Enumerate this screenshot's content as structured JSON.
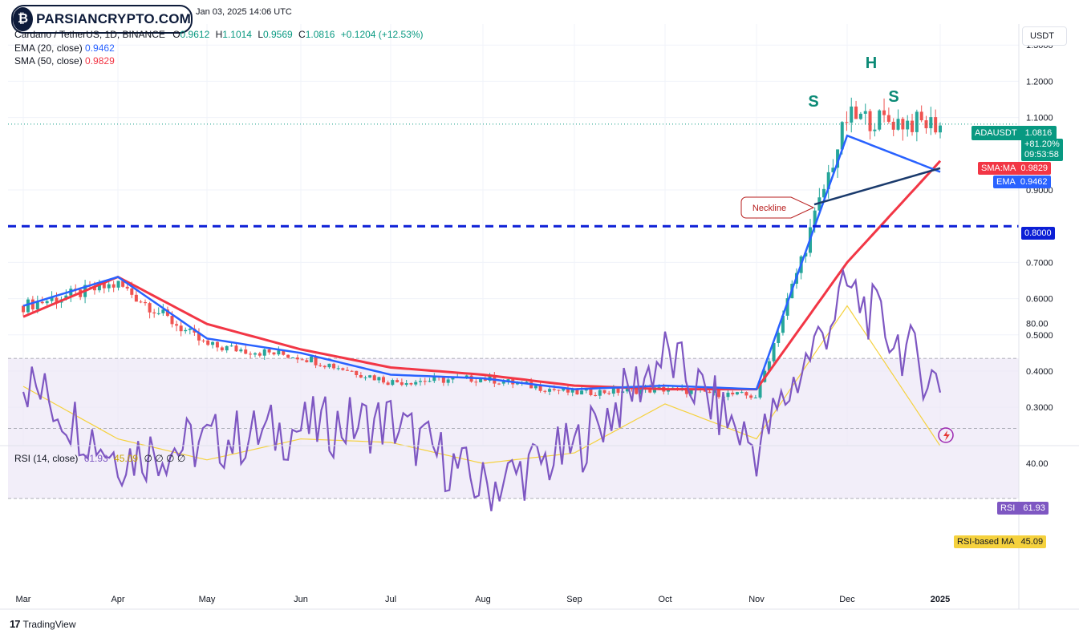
{
  "watermark": {
    "brand": "PARSIANCRYPTO.COM",
    "published": "Jan 03, 2025 14:06 UTC"
  },
  "header": {
    "symbol": "Cardano / TetherUS, 1D, BINANCE",
    "open_label": "O",
    "open": "0.9612",
    "high_label": "H",
    "high": "1.1014",
    "low_label": "L",
    "low": "0.9569",
    "close_label": "C",
    "close": "1.0816",
    "change": "+0.1204 (+12.53%)",
    "ema_label": "EMA (20, close)",
    "ema_value": "0.9462",
    "sma_label": "SMA (50, close)",
    "sma_value": "0.9829"
  },
  "price_axis": {
    "unit": "USDT"
  },
  "tags": {
    "last": {
      "name": "ADAUSDT",
      "price": "1.0816",
      "change": "+81.20%",
      "countdown": "09:53:58"
    },
    "sma": {
      "name": "SMA:MA",
      "value": "0.9829"
    },
    "ema": {
      "name": "EMA",
      "value": "0.9462"
    },
    "support": {
      "value": "0.8000"
    },
    "rsi": {
      "name": "RSI",
      "value": "61.93"
    },
    "rsi_ma": {
      "name": "RSI-based MA",
      "value": "45.09"
    }
  },
  "annotations": {
    "neckline": "Neckline",
    "left_shoulder": "S",
    "head": "H",
    "right_shoulder": "S"
  },
  "rsi_header": {
    "label": "RSI (14, close)",
    "rsi": "61.93",
    "ma": "45.09",
    "extras": "∅ ∅ ∅ ∅"
  },
  "footer": {
    "brand": "TradingView"
  },
  "colors": {
    "up": "#26a69a",
    "down": "#ef5350",
    "ema": "#2962ff",
    "sma": "#f23645",
    "rsi": "#7e57c2",
    "rsi_ma": "#f5d13d",
    "support": "#0c1fd6"
  },
  "chart_data": {
    "type": "line",
    "title": "Cardano / TetherUS, 1D, BINANCE",
    "ylabel": "USDT",
    "ylim": [
      0.25,
      1.35
    ],
    "price_ticks": [
      "1.3000",
      "1.2000",
      "1.1000",
      "0.9000",
      "0.7000",
      "0.6000",
      "0.5000",
      "0.4000",
      "0.3000"
    ],
    "x_ticks": [
      "Mar",
      "Apr",
      "May",
      "Jun",
      "Jul",
      "Aug",
      "Sep",
      "Oct",
      "Nov",
      "Dec",
      "2025"
    ],
    "series": [
      {
        "name": "Cardano / TetherUS",
        "x": [
          "Mar",
          "Apr",
          "May",
          "Jun",
          "Jul",
          "Aug",
          "Sep",
          "Oct",
          "Nov",
          "Dec",
          "2025"
        ],
        "values": [
          0.58,
          0.64,
          0.47,
          0.44,
          0.37,
          0.38,
          0.34,
          0.35,
          0.33,
          1.1,
          1.08
        ]
      },
      {
        "name": "EMA (20, close)",
        "x": [
          "Mar",
          "Apr",
          "May",
          "Jun",
          "Jul",
          "Aug",
          "Sep",
          "Oct",
          "Nov",
          "Dec",
          "2025"
        ],
        "values": [
          0.58,
          0.66,
          0.49,
          0.45,
          0.39,
          0.38,
          0.35,
          0.36,
          0.35,
          1.05,
          0.95
        ]
      },
      {
        "name": "SMA (50, close)",
        "x": [
          "Mar",
          "Apr",
          "May",
          "Jun",
          "Jul",
          "Aug",
          "Sep",
          "Oct",
          "Nov",
          "Dec",
          "2025"
        ],
        "values": [
          0.55,
          0.66,
          0.53,
          0.46,
          0.41,
          0.39,
          0.36,
          0.35,
          0.35,
          0.7,
          0.98
        ]
      }
    ],
    "levels": [
      {
        "name": "support",
        "value": 0.8
      }
    ],
    "neckline": {
      "from": [
        {
          "x": "Nov",
          "y": 0.86
        }
      ],
      "to": [
        {
          "x": "2025",
          "y": 0.96
        }
      ]
    },
    "rsi": {
      "ticks": [
        "80.00",
        "40.00"
      ],
      "x": [
        "Mar",
        "Apr",
        "May",
        "Jun",
        "Jul",
        "Aug",
        "Sep",
        "Oct",
        "Nov",
        "Dec",
        "2025"
      ],
      "values": [
        64,
        42,
        46,
        50,
        52,
        33,
        44,
        71,
        44,
        90,
        62
      ],
      "ma": [
        62,
        47,
        41,
        47,
        46,
        40,
        43,
        57,
        47,
        85,
        45
      ]
    }
  }
}
